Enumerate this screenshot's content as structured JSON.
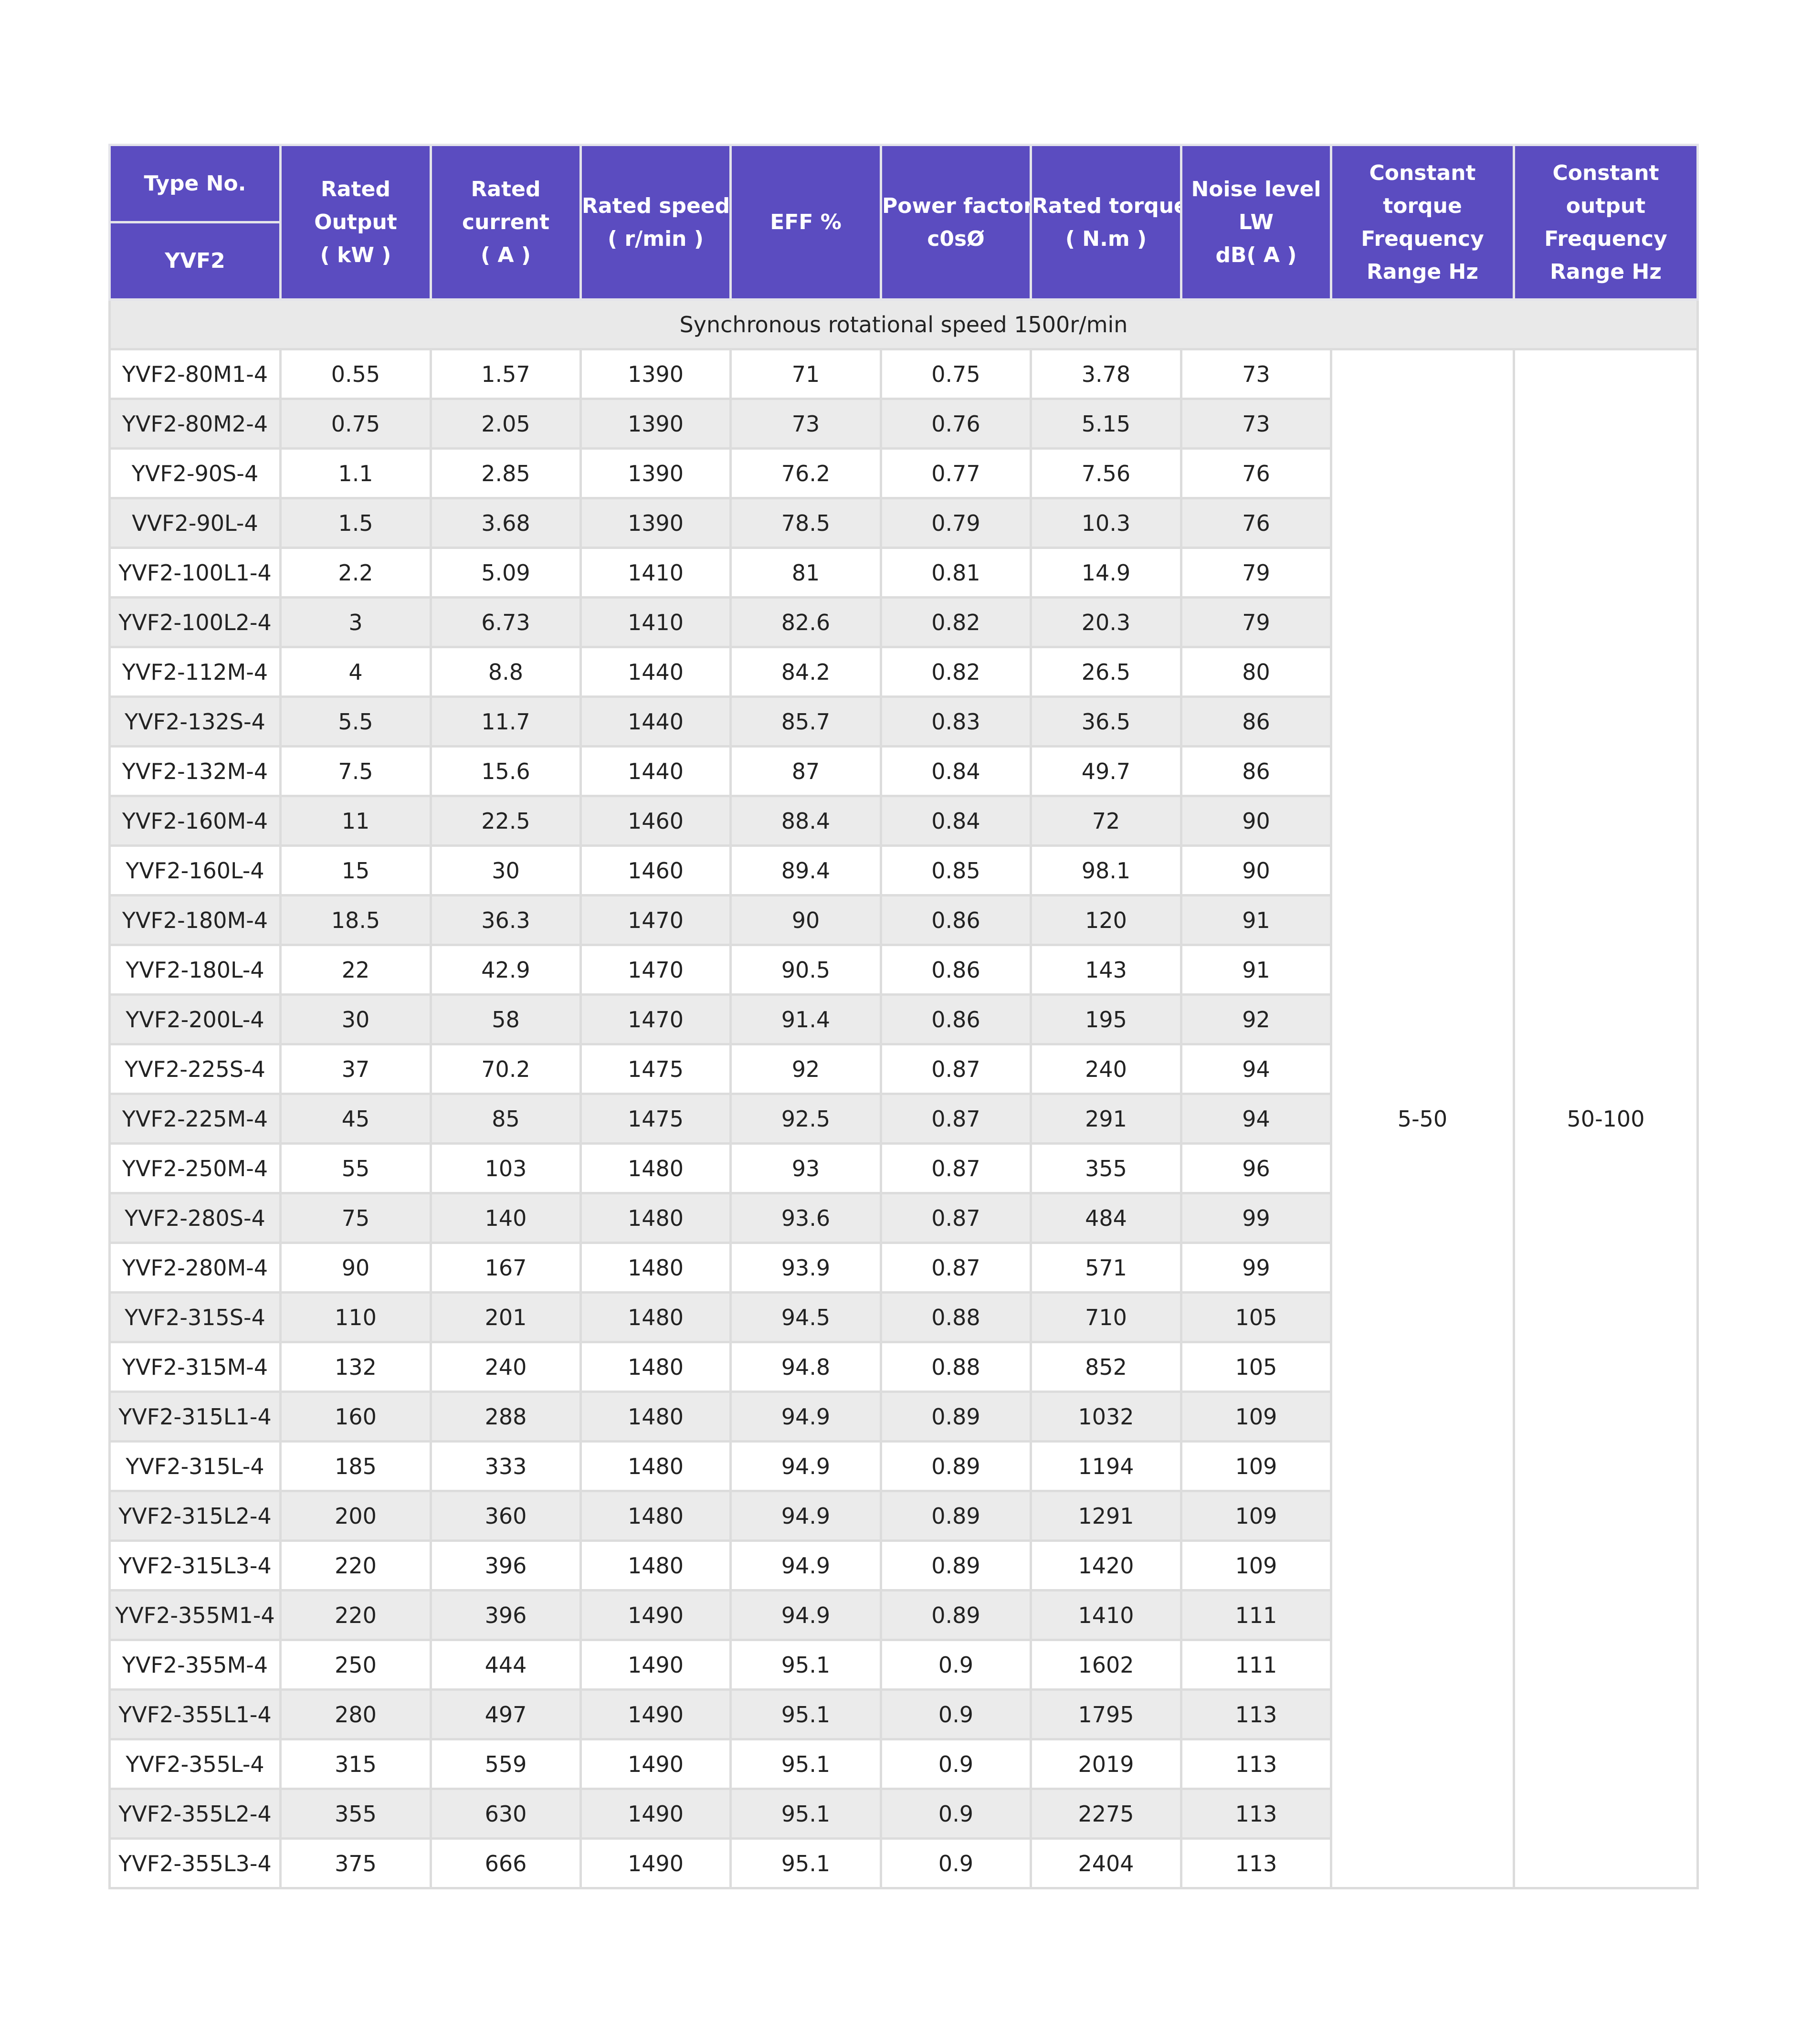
{
  "header": {
    "type_no": "Type No.",
    "model": "YVF2",
    "columns": [
      [
        "Rated",
        "Output",
        "( kW )"
      ],
      [
        "Rated",
        "current",
        "( A )"
      ],
      [
        "Rated speed",
        "( r/min )"
      ],
      [
        "EFF %"
      ],
      [
        "Power factor",
        "c0sØ"
      ],
      [
        "Rated torque",
        "( N.m )"
      ],
      [
        "Noise level",
        "LW",
        "dB( A )"
      ],
      [
        "Constant",
        "torque",
        "Frequency",
        "Range Hz"
      ],
      [
        "Constant",
        "output",
        "Frequency",
        "Range Hz"
      ]
    ]
  },
  "section": "Synchronous rotational speed 1500r/min",
  "rows": [
    [
      "YVF2-80M1-4",
      "0.55",
      "1.57",
      "1390",
      "71",
      "0.75",
      "3.78",
      "73"
    ],
    [
      "YVF2-80M2-4",
      "0.75",
      "2.05",
      "1390",
      "73",
      "0.76",
      "5.15",
      "73"
    ],
    [
      "YVF2-90S-4",
      "1.1",
      "2.85",
      "1390",
      "76.2",
      "0.77",
      "7.56",
      "76"
    ],
    [
      "VVF2-90L-4",
      "1.5",
      "3.68",
      "1390",
      "78.5",
      "0.79",
      "10.3",
      "76"
    ],
    [
      "YVF2-100L1-4",
      "2.2",
      "5.09",
      "1410",
      "81",
      "0.81",
      "14.9",
      "79"
    ],
    [
      "YVF2-100L2-4",
      "3",
      "6.73",
      "1410",
      "82.6",
      "0.82",
      "20.3",
      "79"
    ],
    [
      "YVF2-112M-4",
      "4",
      "8.8",
      "1440",
      "84.2",
      "0.82",
      "26.5",
      "80"
    ],
    [
      "YVF2-132S-4",
      "5.5",
      "11.7",
      "1440",
      "85.7",
      "0.83",
      "36.5",
      "86"
    ],
    [
      "YVF2-132M-4",
      "7.5",
      "15.6",
      "1440",
      "87",
      "0.84",
      "49.7",
      "86"
    ],
    [
      "YVF2-160M-4",
      "11",
      "22.5",
      "1460",
      "88.4",
      "0.84",
      "72",
      "90"
    ],
    [
      "YVF2-160L-4",
      "15",
      "30",
      "1460",
      "89.4",
      "0.85",
      "98.1",
      "90"
    ],
    [
      "YVF2-180M-4",
      "18.5",
      "36.3",
      "1470",
      "90",
      "0.86",
      "120",
      "91"
    ],
    [
      "YVF2-180L-4",
      "22",
      "42.9",
      "1470",
      "90.5",
      "0.86",
      "143",
      "91"
    ],
    [
      "YVF2-200L-4",
      "30",
      "58",
      "1470",
      "91.4",
      "0.86",
      "195",
      "92"
    ],
    [
      "YVF2-225S-4",
      "37",
      "70.2",
      "1475",
      "92",
      "0.87",
      "240",
      "94"
    ],
    [
      "YVF2-225M-4",
      "45",
      "85",
      "1475",
      "92.5",
      "0.87",
      "291",
      "94"
    ],
    [
      "YVF2-250M-4",
      "55",
      "103",
      "1480",
      "93",
      "0.87",
      "355",
      "96"
    ],
    [
      "YVF2-280S-4",
      "75",
      "140",
      "1480",
      "93.6",
      "0.87",
      "484",
      "99"
    ],
    [
      "YVF2-280M-4",
      "90",
      "167",
      "1480",
      "93.9",
      "0.87",
      "571",
      "99"
    ],
    [
      "YVF2-315S-4",
      "110",
      "201",
      "1480",
      "94.5",
      "0.88",
      "710",
      "105"
    ],
    [
      "YVF2-315M-4",
      "132",
      "240",
      "1480",
      "94.8",
      "0.88",
      "852",
      "105"
    ],
    [
      "YVF2-315L1-4",
      "160",
      "288",
      "1480",
      "94.9",
      "0.89",
      "1032",
      "109"
    ],
    [
      "YVF2-315L-4",
      "185",
      "333",
      "1480",
      "94.9",
      "0.89",
      "1194",
      "109"
    ],
    [
      "YVF2-315L2-4",
      "200",
      "360",
      "1480",
      "94.9",
      "0.89",
      "1291",
      "109"
    ],
    [
      "YVF2-315L3-4",
      "220",
      "396",
      "1480",
      "94.9",
      "0.89",
      "1420",
      "109"
    ],
    [
      "YVF2-355M1-4",
      "220",
      "396",
      "1490",
      "94.9",
      "0.89",
      "1410",
      "111"
    ],
    [
      "YVF2-355M-4",
      "250",
      "444",
      "1490",
      "95.1",
      "0.9",
      "1602",
      "111"
    ],
    [
      "YVF2-355L1-4",
      "280",
      "497",
      "1490",
      "95.1",
      "0.9",
      "1795",
      "113"
    ],
    [
      "YVF2-355L-4",
      "315",
      "559",
      "1490",
      "95.1",
      "0.9",
      "2019",
      "113"
    ],
    [
      "YVF2-355L2-4",
      "355",
      "630",
      "1490",
      "95.1",
      "0.9",
      "2275",
      "113"
    ],
    [
      "YVF2-355L3-4",
      "375",
      "666",
      "1490",
      "95.1",
      "0.9",
      "2404",
      "113"
    ]
  ],
  "merged": [
    "5-50",
    "50-100"
  ]
}
